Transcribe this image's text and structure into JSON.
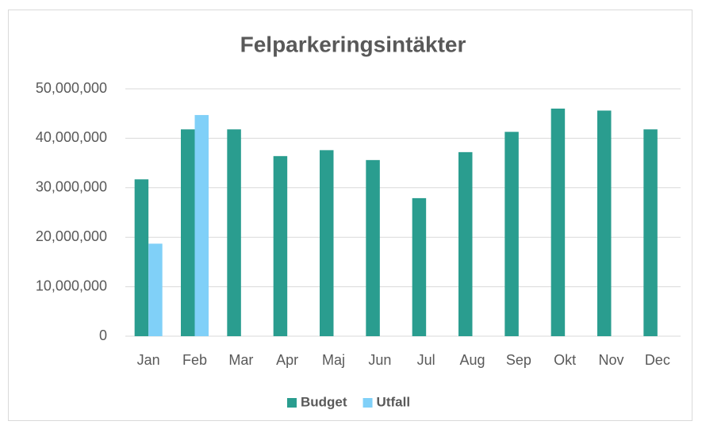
{
  "chart_data": {
    "type": "bar",
    "title": "Felparkeringsintäkter",
    "categories": [
      "Jan",
      "Feb",
      "Mar",
      "Apr",
      "Maj",
      "Jun",
      "Jul",
      "Aug",
      "Sep",
      "Okt",
      "Nov",
      "Dec"
    ],
    "series": [
      {
        "name": "Budget",
        "color": "#2a9d8f",
        "values": [
          31700000,
          41800000,
          41800000,
          36400000,
          37600000,
          35600000,
          27900000,
          37200000,
          41300000,
          46000000,
          45600000,
          41800000
        ]
      },
      {
        "name": "Utfall",
        "color": "#80d0f8",
        "values": [
          18700000,
          44700000,
          null,
          null,
          null,
          null,
          null,
          null,
          null,
          null,
          null,
          null
        ]
      }
    ],
    "ylim": [
      0,
      50000000
    ],
    "yticks": [
      0,
      {
        "value": 10000000,
        "label": "10,000,000"
      },
      {
        "value": 20000000,
        "label": "20,000,000"
      },
      {
        "value": 30000000,
        "label": "30,000,000"
      },
      {
        "value": 40000000,
        "label": "40,000,000"
      },
      {
        "value": 50000000,
        "label": "50,000,000"
      }
    ],
    "grid": true,
    "legend": "bottom"
  }
}
